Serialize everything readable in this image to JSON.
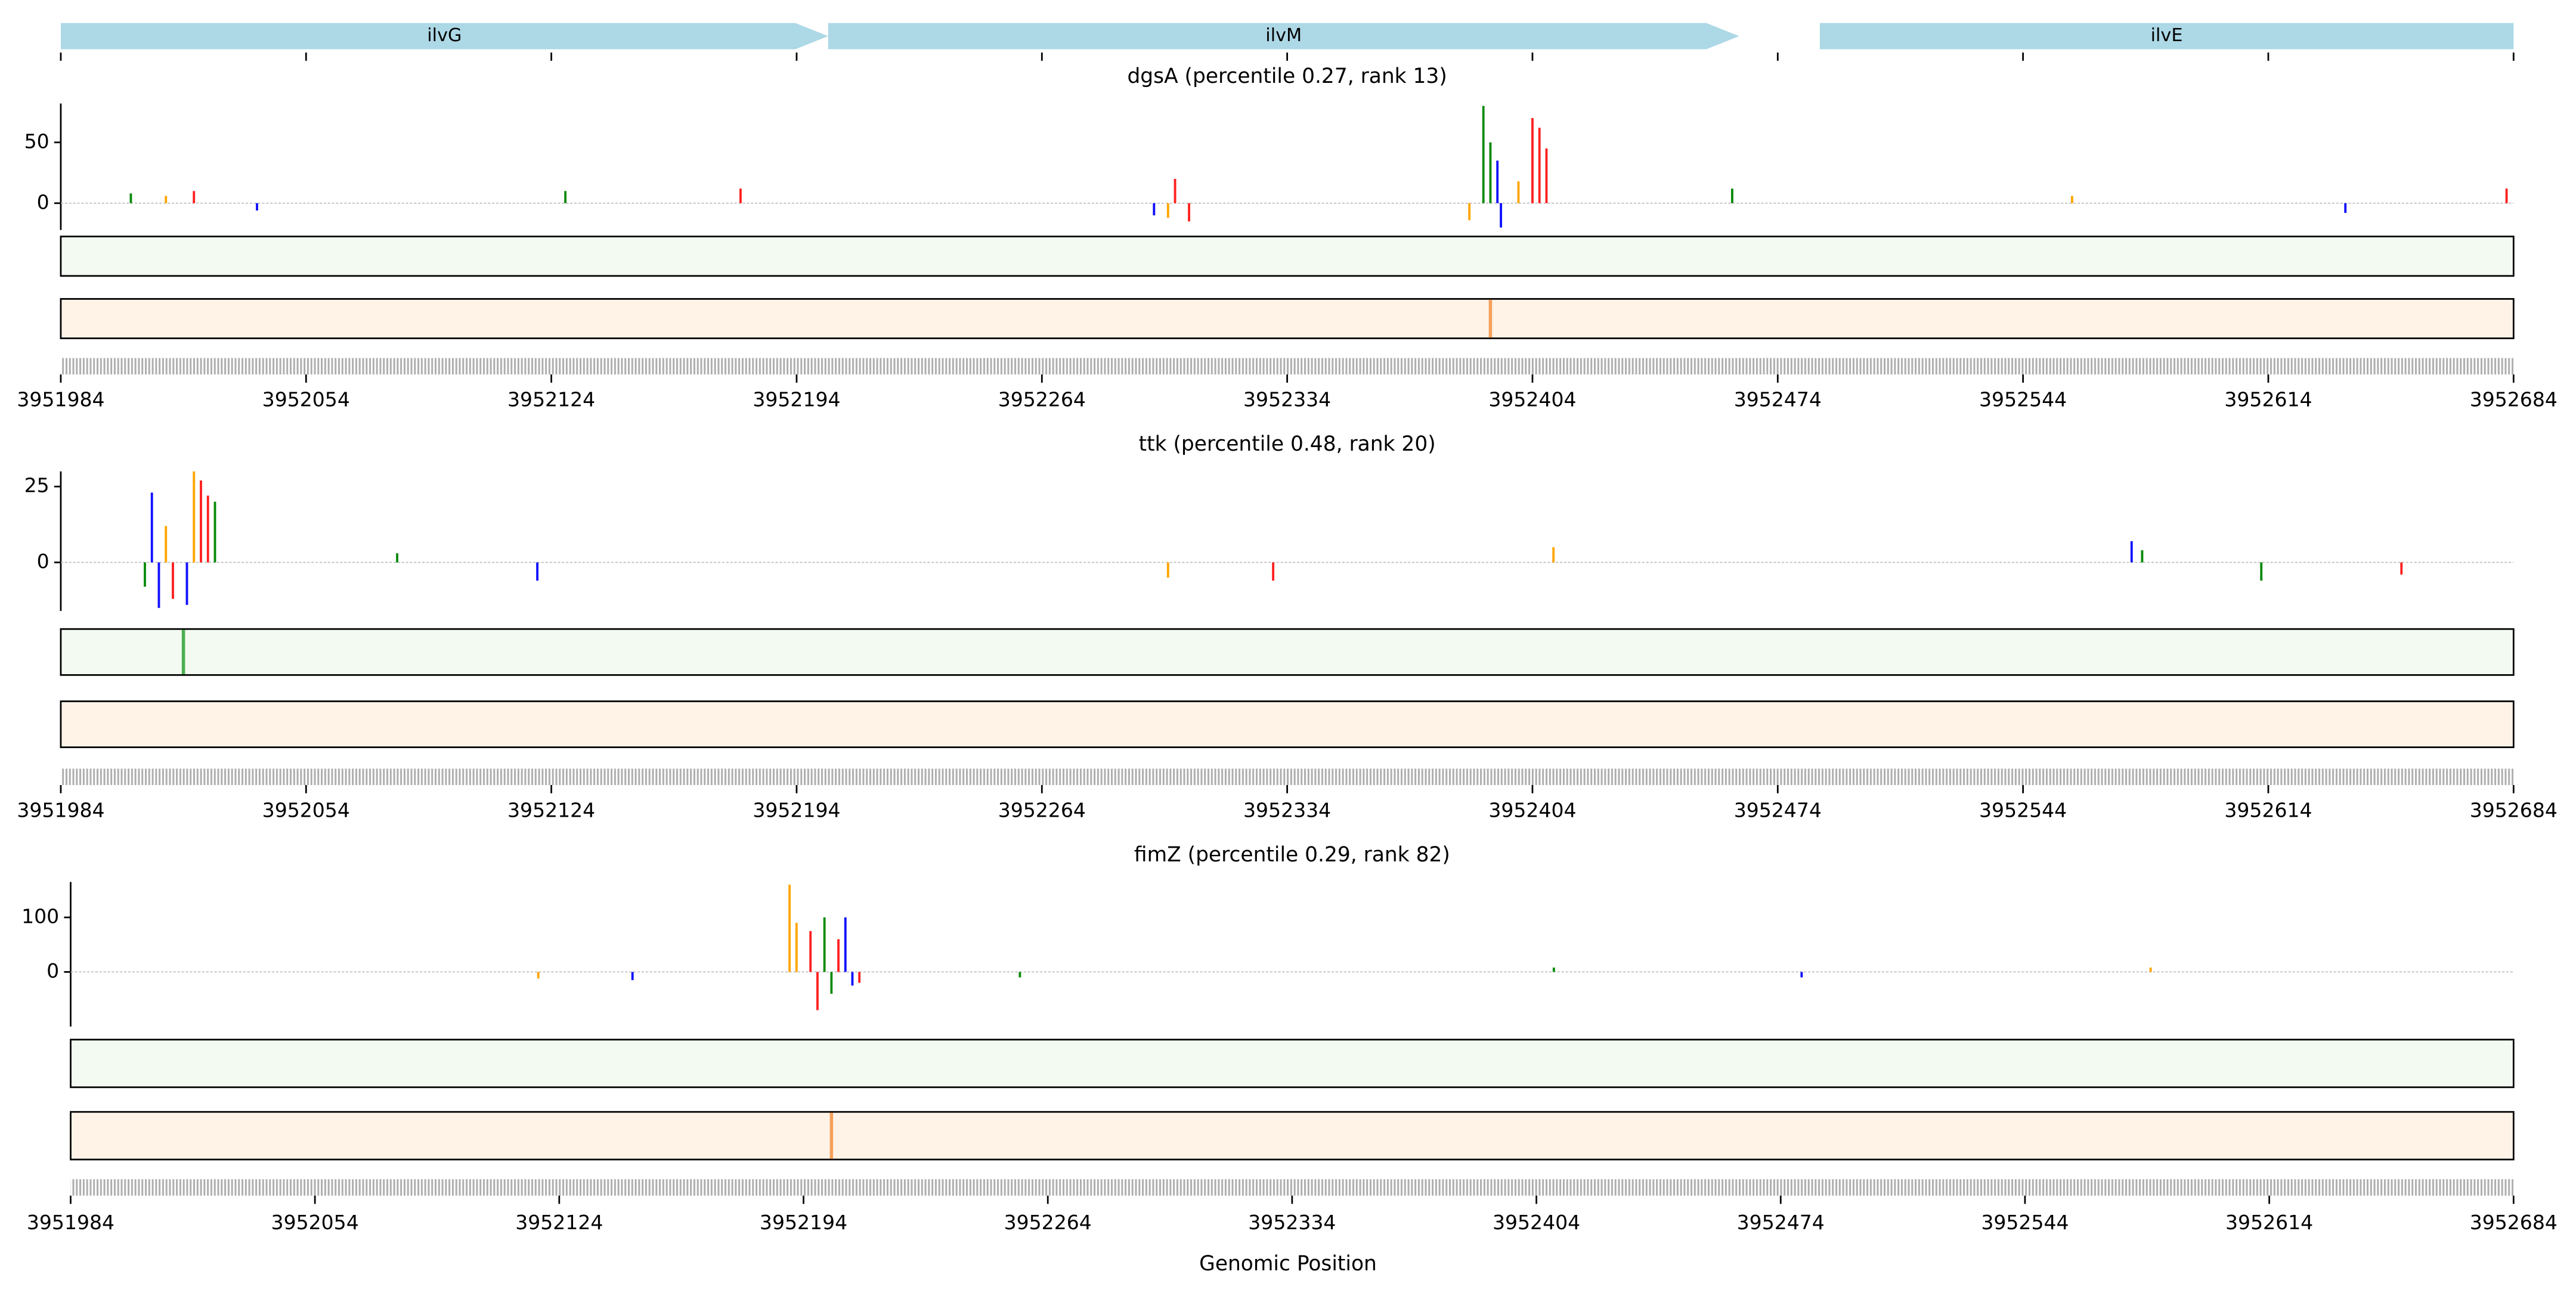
{
  "genes": [
    {
      "name": "ilvG",
      "start": 3951984,
      "end": 3952203
    },
    {
      "name": "ilvM",
      "start": 3952203,
      "end": 3952463
    },
    {
      "name": "ilvE",
      "start": 3952486,
      "end": 3952694
    }
  ],
  "xlabel": "Genomic Position",
  "chart_data": [
    {
      "type": "bar",
      "title": "dgsA (percentile 0.27, rank 13)",
      "xlim": [
        3951984,
        3952684
      ],
      "xticks": [
        3951984,
        3952054,
        3952124,
        3952194,
        3952264,
        3952334,
        3952404,
        3952474,
        3952544,
        3952614,
        3952684
      ],
      "ylim": [
        -22,
        82
      ],
      "yticks": [
        0,
        50
      ],
      "series": [
        {
          "color": "#0a8a0a",
          "x": [
            3952004,
            3952128,
            3952390,
            3952392,
            3952461
          ],
          "values": [
            8,
            10,
            80,
            50,
            12
          ]
        },
        {
          "color": "#1010ff",
          "x": [
            3952040,
            3952296,
            3952394,
            3952395,
            3952636
          ],
          "values": [
            -6,
            -10,
            35,
            -20,
            -8
          ]
        },
        {
          "color": "#ffa500",
          "x": [
            3952014,
            3952300,
            3952386,
            3952400,
            3952558
          ],
          "values": [
            6,
            -12,
            -14,
            18,
            6
          ]
        },
        {
          "color": "#ff2020",
          "x": [
            3952022,
            3952178,
            3952302,
            3952306,
            3952404,
            3952406,
            3952408,
            3952682
          ],
          "values": [
            10,
            12,
            20,
            -15,
            70,
            62,
            45,
            12
          ]
        }
      ],
      "track_peaks": [
        {
          "color": "#4caf50",
          "x": []
        },
        {
          "color": "#f5a05a",
          "x": [
            3952392
          ]
        }
      ]
    },
    {
      "type": "bar",
      "title": "ttk (percentile 0.48, rank 20)",
      "xlim": [
        3951984,
        3952684
      ],
      "xticks": [
        3951984,
        3952054,
        3952124,
        3952194,
        3952264,
        3952334,
        3952404,
        3952474,
        3952544,
        3952614,
        3952684
      ],
      "ylim": [
        -16,
        30
      ],
      "yticks": [
        0,
        25
      ],
      "series": [
        {
          "color": "#0a8a0a",
          "x": [
            3952008,
            3952028,
            3952080,
            3952578,
            3952612
          ],
          "values": [
            -8,
            20,
            3,
            4,
            -6
          ]
        },
        {
          "color": "#1010ff",
          "x": [
            3952010,
            3952012,
            3952020,
            3952120,
            3952575
          ],
          "values": [
            23,
            -15,
            -14,
            -6,
            7
          ]
        },
        {
          "color": "#ffa500",
          "x": [
            3952014,
            3952022,
            3952300,
            3952410
          ],
          "values": [
            12,
            30,
            -5,
            5
          ]
        },
        {
          "color": "#ff2020",
          "x": [
            3952016,
            3952024,
            3952026,
            3952330,
            3952652
          ],
          "values": [
            -12,
            27,
            22,
            -6,
            -4
          ]
        }
      ],
      "track_peaks": [
        {
          "color": "#4caf50",
          "x": [
            3952019
          ]
        },
        {
          "color": "#f5a05a",
          "x": []
        }
      ]
    },
    {
      "type": "bar",
      "title": "fimZ (percentile 0.29, rank 82)",
      "xlim": [
        3951984,
        3952684
      ],
      "xticks": [
        3951984,
        3952054,
        3952124,
        3952194,
        3952264,
        3952334,
        3952404,
        3952474,
        3952544,
        3952614,
        3952684
      ],
      "ylim": [
        -100,
        165
      ],
      "yticks": [
        0,
        100
      ],
      "series": [
        {
          "color": "#0a8a0a",
          "x": [
            3952200,
            3952202,
            3952256,
            3952409
          ],
          "values": [
            100,
            -40,
            -10,
            8
          ]
        },
        {
          "color": "#1010ff",
          "x": [
            3952206,
            3952208,
            3952145,
            3952480
          ],
          "values": [
            100,
            -25,
            -15,
            -10
          ]
        },
        {
          "color": "#ffa500",
          "x": [
            3952190,
            3952192,
            3952118,
            3952580
          ],
          "values": [
            160,
            90,
            -12,
            8
          ]
        },
        {
          "color": "#ff2020",
          "x": [
            3952196,
            3952198,
            3952204,
            3952210
          ],
          "values": [
            75,
            -70,
            60,
            -20
          ]
        }
      ],
      "track_peaks": [
        {
          "color": "#4caf50",
          "x": []
        },
        {
          "color": "#f5a05a",
          "x": [
            3952202
          ]
        }
      ]
    }
  ]
}
